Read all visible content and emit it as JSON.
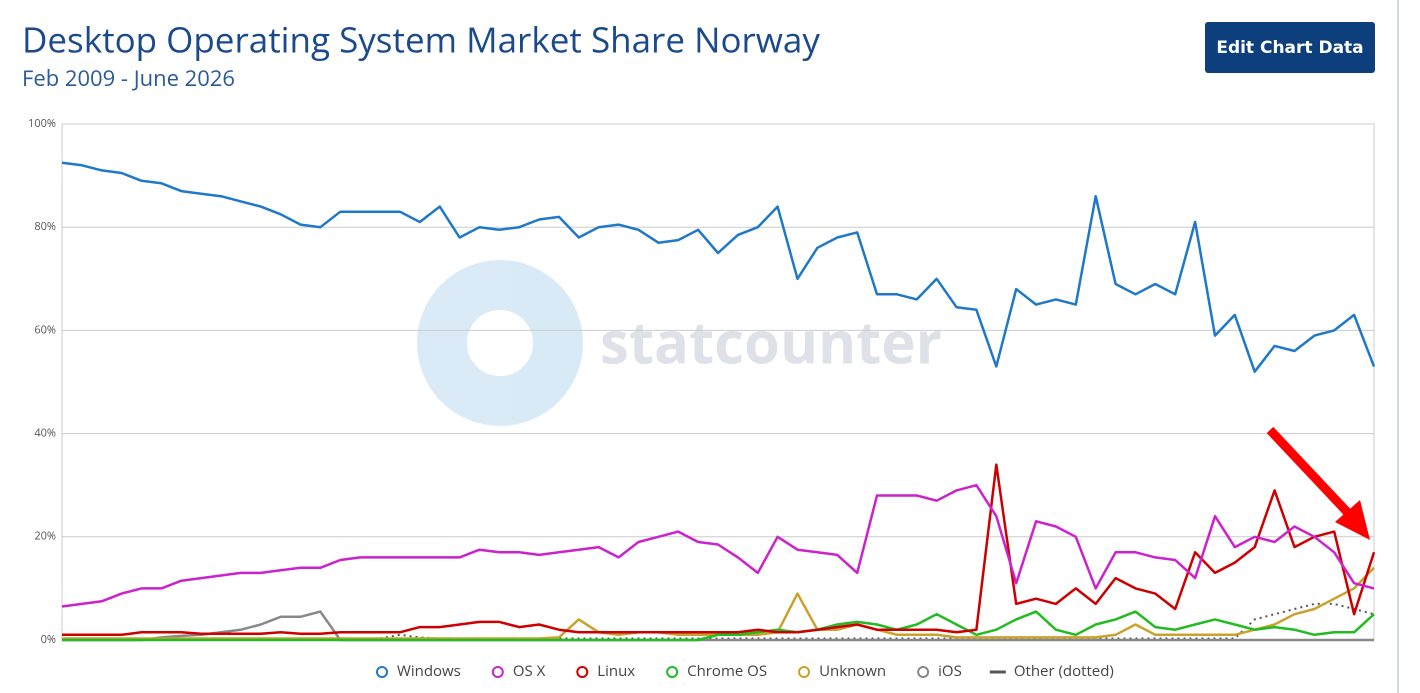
{
  "chart_data": {
    "type": "line",
    "title": "Desktop Operating System Market Share Norway",
    "subtitle": "Feb 2009 - June 2026",
    "button": "Edit Chart Data",
    "watermark": "statcounter",
    "ylim": [
      0,
      100
    ],
    "yticks": [
      {
        "value": 0,
        "label": "0%"
      },
      {
        "value": 20,
        "label": "20%"
      },
      {
        "value": 40,
        "label": "40%"
      },
      {
        "value": 60,
        "label": "60%"
      },
      {
        "value": 80,
        "label": "80%"
      },
      {
        "value": 100,
        "label": "100%"
      }
    ],
    "grid": true,
    "legend": "bottom",
    "series": [
      {
        "name": "Windows",
        "color": "#1f78c8",
        "values": [
          92.5,
          92,
          91,
          90.5,
          89,
          88.5,
          87,
          86.5,
          86,
          85,
          84,
          82.5,
          80.5,
          80,
          83,
          83,
          83,
          83,
          81,
          84,
          78,
          80,
          79.5,
          80,
          81.5,
          82,
          78,
          80,
          80.5,
          79.5,
          77,
          77.5,
          79.5,
          75,
          78.5,
          80,
          84,
          70,
          76,
          78,
          79,
          67,
          67,
          66,
          70,
          64.5,
          64,
          53,
          68,
          65,
          66,
          65,
          86,
          69,
          67,
          69,
          67,
          81,
          59,
          63,
          52,
          57,
          56,
          59,
          60,
          63,
          53
        ]
      },
      {
        "name": "OS X",
        "color": "#cc22cc",
        "values": [
          6.5,
          7,
          7.5,
          9,
          10,
          10,
          11.5,
          12,
          12.5,
          13,
          13,
          13.5,
          14,
          14,
          15.5,
          16,
          16,
          16,
          16,
          16,
          16,
          17.5,
          17,
          17,
          16.5,
          17,
          17.5,
          18,
          16,
          19,
          20,
          21,
          19,
          18.5,
          16,
          13,
          20,
          17.5,
          17,
          16.5,
          13,
          28,
          28,
          28,
          27,
          29,
          30,
          24,
          11,
          23,
          22,
          20,
          10,
          17,
          17,
          16,
          15.5,
          12,
          24,
          18,
          20,
          19,
          22,
          20,
          17,
          11,
          10
        ]
      },
      {
        "name": "Linux",
        "color": "#cc0000",
        "values": [
          1,
          1,
          1,
          1,
          1.5,
          1.5,
          1.5,
          1.2,
          1.2,
          1.2,
          1.2,
          1.5,
          1.2,
          1.2,
          1.5,
          1.5,
          1.5,
          1.5,
          2.5,
          2.5,
          3,
          3.5,
          3.5,
          2.5,
          3,
          2,
          1.5,
          1.5,
          1.5,
          1.5,
          1.5,
          1.5,
          1.5,
          1.5,
          1.5,
          2,
          1.5,
          1.5,
          2,
          2.5,
          3,
          2,
          2,
          2,
          2,
          1.5,
          2,
          34,
          7,
          8,
          7,
          10,
          7,
          12,
          10,
          9,
          6,
          17,
          13,
          15,
          18,
          29,
          18,
          20,
          21,
          5,
          17
        ]
      },
      {
        "name": "Chrome OS",
        "color": "#22bb22",
        "values": [
          0,
          0,
          0,
          0,
          0,
          0,
          0,
          0,
          0,
          0,
          0,
          0,
          0,
          0,
          0,
          0,
          0,
          0,
          0,
          0,
          0,
          0,
          0,
          0,
          0,
          0,
          0,
          0,
          0,
          0,
          0,
          0,
          0,
          1,
          1,
          1.5,
          2,
          1.5,
          2,
          3,
          3.5,
          3,
          2,
          3,
          5,
          3,
          1,
          2,
          4,
          5.5,
          2,
          1,
          3,
          4,
          5.5,
          2.5,
          2,
          3,
          4,
          3,
          2,
          2.5,
          2,
          1,
          1.5,
          1.5,
          5
        ]
      },
      {
        "name": "Unknown",
        "color": "#c9a22e",
        "values": [
          0.3,
          0.3,
          0.3,
          0.3,
          0.3,
          0.3,
          0.3,
          0.3,
          0.3,
          0.3,
          0.3,
          0.3,
          0.3,
          0.3,
          0.3,
          0.3,
          0.3,
          0.3,
          0.3,
          0.3,
          0.3,
          0.3,
          0.3,
          0.3,
          0.3,
          0.5,
          4,
          1.5,
          1,
          1.5,
          1.5,
          1,
          1,
          1,
          1,
          1,
          1.5,
          9,
          2,
          2,
          3,
          2,
          1,
          1,
          1,
          0.5,
          0.5,
          0.5,
          0.5,
          0.5,
          0.5,
          0.5,
          0.5,
          1,
          3,
          1,
          1,
          1,
          1,
          1,
          2,
          3,
          5,
          6,
          8,
          10,
          14
        ]
      },
      {
        "name": "iOS",
        "color": "#888888",
        "values": [
          0,
          0,
          0,
          0,
          0,
          0.5,
          0.8,
          1,
          1.5,
          2,
          3,
          4.5,
          4.5,
          5.5,
          0,
          0,
          0,
          0,
          0,
          0,
          0,
          0,
          0,
          0,
          0,
          0,
          0,
          0,
          0,
          0,
          0,
          0,
          0,
          0,
          0,
          0,
          0,
          0,
          0,
          0,
          0,
          0,
          0,
          0,
          0,
          0,
          0,
          0,
          0,
          0,
          0,
          0,
          0,
          0,
          0,
          0,
          0,
          0,
          0,
          0,
          0,
          0,
          0,
          0,
          0,
          0,
          0
        ]
      },
      {
        "name": "Other (dotted)",
        "color": "#555555",
        "line_style": "dotted",
        "values": [
          0.3,
          0.3,
          0.3,
          0.3,
          0.3,
          0.3,
          0.3,
          0.3,
          0.3,
          0.3,
          0.3,
          0.3,
          0.3,
          0.3,
          0.3,
          0.3,
          0.3,
          1,
          0.5,
          0.3,
          0.3,
          0.3,
          0.3,
          0.3,
          0.3,
          0.3,
          0.3,
          0.3,
          0.3,
          0.3,
          0.3,
          0.3,
          0.3,
          0.3,
          0.3,
          0.3,
          0.3,
          0.3,
          0.3,
          0.3,
          0.3,
          0.3,
          0.3,
          0.3,
          0.3,
          0.3,
          0.3,
          0.3,
          0.3,
          0.3,
          0.3,
          0.3,
          0.3,
          0.3,
          0.3,
          0.3,
          0.3,
          0.3,
          0.3,
          0.3,
          4,
          5,
          6,
          7,
          7,
          6,
          5
        ]
      }
    ]
  }
}
